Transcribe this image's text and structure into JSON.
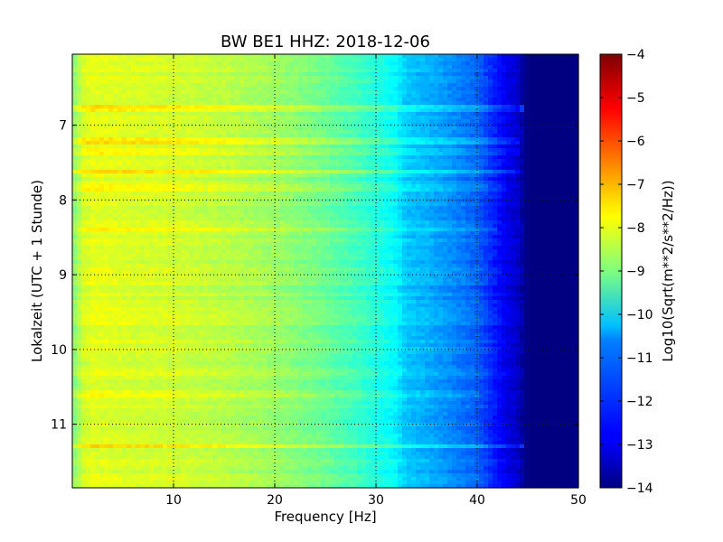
{
  "chart_data": {
    "type": "heatmap",
    "title": "BW BE1 HHZ: 2018-12-06",
    "xlabel": "Frequency [Hz]",
    "ylabel": "Lokalzeit (UTC + 1 Stunde)",
    "colorbar_label": "Log10(Sqrt(m**2/s**2/Hz))",
    "xlim": [
      0,
      50
    ],
    "ylim": [
      6.05,
      11.85
    ],
    "y_inverted": true,
    "x_ticks": [
      10,
      20,
      30,
      40,
      50
    ],
    "x_tick_labels": [
      "10",
      "20",
      "30",
      "40",
      "50"
    ],
    "y_ticks": [
      7,
      8,
      9,
      10,
      11
    ],
    "y_tick_labels": [
      "7",
      "8",
      "9",
      "10",
      "11"
    ],
    "grid": true,
    "colormap": "jet",
    "clim": [
      -14,
      -4
    ],
    "colorbar_ticks": [
      -4,
      -5,
      -6,
      -7,
      -8,
      -9,
      -10,
      -11,
      -12,
      -13,
      -14
    ],
    "colorbar_tick_labels": [
      "−4",
      "−5",
      "−6",
      "−7",
      "−8",
      "−9",
      "−10",
      "−11",
      "−12",
      "−13",
      "−14"
    ],
    "frequency_profile": {
      "frequency": [
        0,
        0.5,
        1,
        2,
        5,
        10,
        15,
        20,
        25,
        28,
        30,
        32,
        33,
        35,
        37,
        40,
        42,
        43,
        44,
        45,
        46,
        50
      ],
      "value": [
        -9,
        -8.6,
        -8.2,
        -8.0,
        -8.1,
        -8.2,
        -8.4,
        -8.7,
        -9.2,
        -9.6,
        -9.9,
        -10.3,
        -10.8,
        -11.0,
        -11.3,
        -11.8,
        -12.6,
        -13.0,
        -13.3,
        -14,
        -14,
        -14
      ]
    },
    "bright_bands": [
      {
        "time": 6.75,
        "boost": 0.6,
        "fmax": 45
      },
      {
        "time": 6.8,
        "boost": 0.6,
        "fmax": 45
      },
      {
        "time": 7.2,
        "boost": 0.5,
        "fmax": 44
      },
      {
        "time": 7.35,
        "boost": 0.4,
        "fmax": 44
      },
      {
        "time": 7.62,
        "boost": 0.6,
        "fmax": 44
      },
      {
        "time": 7.85,
        "boost": 0.5,
        "fmax": 43
      },
      {
        "time": 8.4,
        "boost": 0.3,
        "fmax": 42
      },
      {
        "time": 10.6,
        "boost": 0.3,
        "fmax": 40
      },
      {
        "time": 11.3,
        "boost": 0.7,
        "fmax": 45
      }
    ],
    "colors": {
      "background": "#ffffff",
      "frame": "#000000",
      "grid": "#000000"
    }
  }
}
